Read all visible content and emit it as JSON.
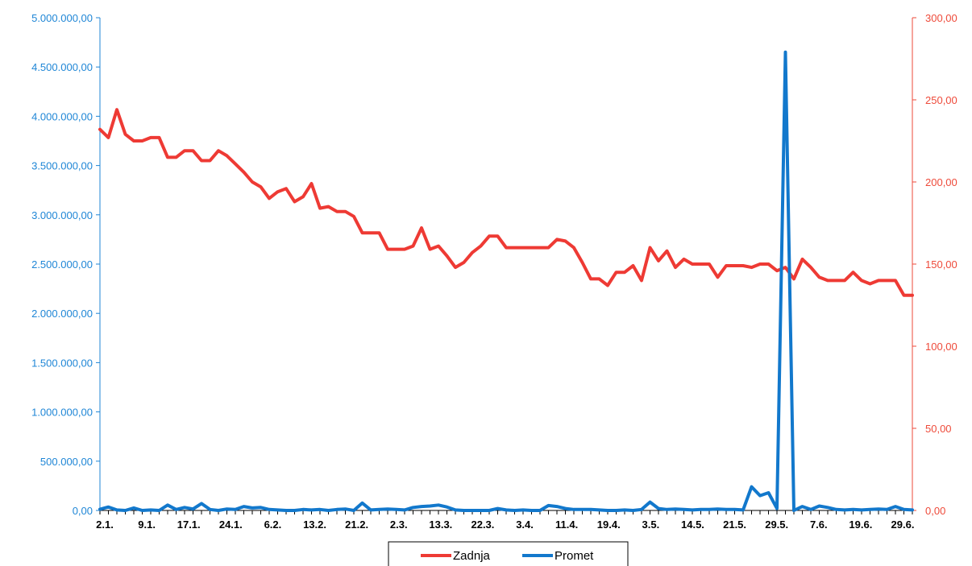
{
  "chart_data": {
    "type": "line",
    "x_ticks": [
      "2.1.",
      "9.1.",
      "17.1.",
      "24.1.",
      "6.2.",
      "13.2.",
      "21.2.",
      "2.3.",
      "13.3.",
      "22.3.",
      "3.4.",
      "11.4.",
      "19.4.",
      "3.5.",
      "14.5.",
      "21.5.",
      "29.5.",
      "7.6.",
      "19.6.",
      "29.6."
    ],
    "y_left": {
      "min": 0,
      "max": 5000000,
      "ticks": [
        "0,00",
        "500.000,00",
        "1.000.000,00",
        "1.500.000,00",
        "2.000.000,00",
        "2.500.000,00",
        "3.000.000,00",
        "3.500.000,00",
        "4.000.000,00",
        "4.500.000,00",
        "5.000.000,00"
      ],
      "color": "#1f86d6"
    },
    "y_right": {
      "min": 0,
      "max": 300,
      "ticks": [
        "0,00",
        "50,00",
        "100,00",
        "150,00",
        "200,00",
        "250,00",
        "300,00"
      ],
      "color": "#ee4a3a"
    },
    "series": [
      {
        "name": "Zadnja",
        "axis": "right",
        "color": "#ee3a34",
        "values": [
          232,
          227,
          244,
          229,
          225,
          225,
          227,
          227,
          215,
          215,
          219,
          219,
          213,
          213,
          219,
          216,
          211,
          206,
          200,
          197,
          190,
          194,
          196,
          188,
          191,
          199,
          184,
          185,
          182,
          182,
          179,
          169,
          169,
          169,
          159,
          159,
          159,
          161,
          172,
          159,
          161,
          155,
          148,
          151,
          157,
          161,
          167,
          167,
          160,
          160,
          160,
          160,
          160,
          160,
          165,
          164,
          160,
          151,
          141,
          141,
          137,
          145,
          145,
          149,
          140,
          160,
          152,
          158,
          148,
          153,
          150,
          150,
          150,
          142,
          149,
          149,
          149,
          148,
          150,
          150,
          146,
          148,
          141,
          153,
          148,
          142,
          140,
          140,
          140,
          145,
          140,
          138,
          140,
          140,
          140,
          131,
          131
        ]
      },
      {
        "name": "Promet",
        "axis": "left",
        "color": "#1278cc",
        "values": [
          12000,
          35000,
          5000,
          0,
          25000,
          0,
          5000,
          0,
          55000,
          10000,
          30000,
          15000,
          70000,
          10000,
          0,
          15000,
          10000,
          40000,
          25000,
          30000,
          10000,
          5000,
          0,
          0,
          10000,
          5000,
          10000,
          0,
          10000,
          15000,
          0,
          75000,
          5000,
          10000,
          15000,
          10000,
          5000,
          30000,
          40000,
          45000,
          55000,
          35000,
          5000,
          0,
          0,
          0,
          0,
          20000,
          5000,
          0,
          5000,
          0,
          0,
          50000,
          40000,
          20000,
          10000,
          10000,
          10000,
          5000,
          0,
          0,
          5000,
          0,
          10000,
          85000,
          20000,
          10000,
          15000,
          10000,
          5000,
          10000,
          10000,
          15000,
          10000,
          10000,
          5000,
          240000,
          150000,
          180000,
          20000,
          4650000,
          0,
          40000,
          10000,
          45000,
          30000,
          10000,
          5000,
          10000,
          5000,
          10000,
          15000,
          10000,
          40000,
          10000,
          5000
        ]
      }
    ],
    "legend": {
      "position": "bottom-center",
      "entries": [
        "Zadnja",
        "Promet"
      ]
    },
    "grid": false
  }
}
